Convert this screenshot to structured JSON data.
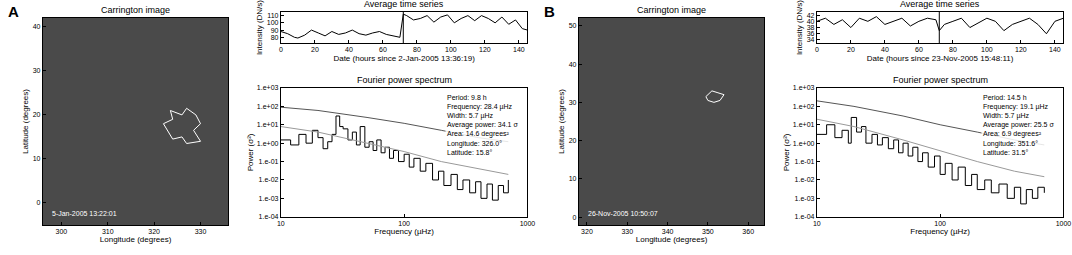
{
  "chart_data": [
    {
      "type": "image",
      "panel_label": "A",
      "title": "Carrington image",
      "x_label": "Longitude (degrees)",
      "y_label": "Latitude (degrees)",
      "xlim": [
        296,
        336
      ],
      "xticks": [
        300,
        310,
        320,
        330
      ],
      "ylim": [
        -5,
        42
      ],
      "yticks": [
        0,
        10,
        20,
        30,
        40
      ],
      "timestamp": "5-Jan-2005 13:22:01",
      "region_outline": {
        "lon": [
          322,
          324,
          323.5,
          326,
          327,
          329,
          330,
          328.5,
          330,
          327,
          326,
          324,
          322
        ],
        "lat": [
          18,
          19,
          21,
          20,
          21.5,
          20,
          18,
          16.5,
          14,
          13.5,
          15,
          14.5,
          18
        ]
      },
      "grid": false
    },
    {
      "type": "line",
      "title": "Average time series",
      "x_label": "Date (hours since 2-Jan-2005 13:36:19)",
      "y_label": "Intensity (DN/s)",
      "x": [
        0,
        4,
        8,
        10,
        14,
        18,
        22,
        26,
        30,
        34,
        38,
        42,
        46,
        50,
        54,
        58,
        62,
        66,
        70,
        72,
        74,
        78,
        82,
        86,
        90,
        94,
        98,
        102,
        106,
        110,
        114,
        118,
        122,
        126,
        130,
        134,
        138,
        142,
        145
      ],
      "values": [
        88,
        85,
        80,
        79,
        83,
        90,
        86,
        82,
        88,
        84,
        86,
        90,
        85,
        83,
        86,
        88,
        84,
        82,
        80,
        112,
        110,
        104,
        106,
        110,
        101,
        108,
        111,
        100,
        106,
        110,
        103,
        110,
        106,
        100,
        108,
        98,
        104,
        92,
        90
      ],
      "xlim": [
        0,
        145
      ],
      "xticks": [
        0,
        20,
        40,
        60,
        80,
        100,
        120,
        140
      ],
      "ylim": [
        72,
        115
      ],
      "yticks": [
        80,
        90,
        100,
        110
      ],
      "reference_x": 72,
      "color": "#000000",
      "grid": false
    },
    {
      "type": "line",
      "log": true,
      "title": "Fourier power spectrum",
      "x_label": "Frequency (µHz)",
      "y_label": "Power (σ²)",
      "xlim": [
        10,
        1000
      ],
      "xticks": [
        10,
        100,
        1000
      ],
      "ylim": [
        0.0001,
        1000
      ],
      "yticks": [
        {
          "value": 0.0001,
          "label": "1.e-04"
        },
        {
          "value": 0.001,
          "label": "1.e-03"
        },
        {
          "value": 0.01,
          "label": "1.e-02"
        },
        {
          "value": 0.1,
          "label": "1.e-01"
        },
        {
          "value": 1,
          "label": "1.e+00"
        },
        {
          "value": 10,
          "label": "1.e+01"
        },
        {
          "value": 100,
          "label": "1.e+02"
        },
        {
          "value": 1000,
          "label": "1.e+03"
        }
      ],
      "series": [
        {
          "color": "#000000",
          "line_style": "step",
          "x": [
            10,
            12,
            14,
            16,
            18,
            20,
            22,
            24,
            26,
            28,
            30,
            32,
            35,
            38,
            41,
            44,
            48,
            52,
            56,
            60,
            65,
            70,
            76,
            82,
            90,
            100,
            110,
            120,
            135,
            150,
            170,
            190,
            210,
            240,
            270,
            300,
            340,
            380,
            420,
            470,
            520,
            580,
            640,
            700
          ],
          "values": [
            1.5,
            0.8,
            3,
            1,
            5,
            2,
            0.5,
            1.2,
            3,
            30,
            8,
            6,
            1.5,
            4,
            0.8,
            8,
            0.6,
            1.2,
            0.4,
            1.5,
            0.3,
            0.6,
            0.15,
            0.4,
            0.1,
            0.25,
            0.05,
            0.15,
            0.03,
            0.08,
            0.01,
            0.03,
            0.005,
            0.02,
            0.003,
            0.01,
            0.002,
            0.008,
            0.001,
            0.006,
            0.0008,
            0.005,
            0.002,
            0.01
          ]
        },
        {
          "color": "#555555",
          "line_style": "solid",
          "x": [
            10,
            20,
            50,
            100,
            200,
            400,
            700
          ],
          "values": [
            90,
            60,
            25,
            12,
            5,
            2,
            1.2
          ]
        },
        {
          "color": "#999999",
          "line_style": "solid",
          "x": [
            10,
            20,
            50,
            100,
            200,
            400,
            700
          ],
          "values": [
            8,
            4,
            1,
            0.35,
            0.1,
            0.04,
            0.02
          ]
        }
      ],
      "annotation_lines": [
        "Period: 9.8 h",
        "Frequency: 28.4 µHz",
        "Width: 5.7 µHz",
        "Average power: 34.1 σ",
        "Area: 14.6 degrees²",
        "Longitude: 326.0°",
        "Latitude: 15.8°"
      ],
      "grid": false
    },
    {
      "type": "image",
      "panel_label": "B",
      "title": "Carrington image",
      "x_label": "Longitude (degrees)",
      "y_label": "Latitude (degrees)",
      "xlim": [
        318,
        364
      ],
      "xticks": [
        320,
        330,
        340,
        350,
        360
      ],
      "ylim": [
        -2,
        52
      ],
      "yticks": [
        0,
        10,
        20,
        30,
        40,
        50
      ],
      "timestamp": "26-Nov-2005 10:50:07",
      "region_outline": {
        "lon": [
          349.5,
          351,
          352.5,
          354,
          353,
          351.5,
          350,
          349.5
        ],
        "lat": [
          31.5,
          33,
          32.5,
          32,
          30.5,
          30,
          30.5,
          31.5
        ]
      },
      "grid": false
    },
    {
      "type": "line",
      "title": "Average time series",
      "x_label": "Date (hours since 23-Nov-2005 15:48:11)",
      "y_label": "Intensity (DN/s)",
      "x": [
        0,
        5,
        10,
        15,
        20,
        25,
        30,
        35,
        40,
        45,
        50,
        55,
        60,
        65,
        70,
        72,
        75,
        80,
        85,
        90,
        95,
        100,
        105,
        110,
        115,
        120,
        125,
        130,
        135,
        140,
        145
      ],
      "values": [
        40,
        41,
        39,
        40.5,
        38,
        41,
        40,
        41.5,
        39,
        40,
        41,
        38.5,
        40,
        41,
        40.5,
        37,
        39,
        40,
        41,
        38,
        39.5,
        41,
        40,
        37,
        39,
        40,
        41,
        39,
        36,
        40,
        41
      ],
      "xlim": [
        0,
        145
      ],
      "xticks": [
        0,
        20,
        40,
        60,
        80,
        100,
        120,
        140
      ],
      "ylim": [
        33,
        43
      ],
      "yticks": [
        34,
        36,
        38,
        40,
        42
      ],
      "reference_x": 72,
      "color": "#000000",
      "grid": false
    },
    {
      "type": "line",
      "log": true,
      "title": "Fourier power spectrum",
      "x_label": "Frequency (µHz)",
      "y_label": "Power (σ²)",
      "xlim": [
        10,
        1000
      ],
      "xticks": [
        10,
        100,
        1000
      ],
      "ylim": [
        0.0001,
        1000
      ],
      "yticks": [
        {
          "value": 0.0001,
          "label": "1.e-04"
        },
        {
          "value": 0.001,
          "label": "1.e-03"
        },
        {
          "value": 0.01,
          "label": "1.e-02"
        },
        {
          "value": 0.1,
          "label": "1.e-01"
        },
        {
          "value": 1,
          "label": "1.e+00"
        },
        {
          "value": 10,
          "label": "1.e+01"
        },
        {
          "value": 100,
          "label": "1.e+02"
        },
        {
          "value": 1000,
          "label": "1.e+03"
        }
      ],
      "series": [
        {
          "color": "#000000",
          "line_style": "step",
          "x": [
            10,
            12,
            14,
            16,
            18,
            19,
            21,
            23,
            25,
            28,
            31,
            34,
            38,
            42,
            46,
            50,
            55,
            60,
            66,
            72,
            80,
            90,
            100,
            110,
            125,
            140,
            160,
            180,
            200,
            230,
            260,
            300,
            350,
            400,
            450,
            500,
            560,
            620,
            700
          ],
          "values": [
            3,
            10,
            2,
            5,
            1,
            25,
            4,
            8,
            1,
            3,
            0.8,
            2,
            0.5,
            1.5,
            0.3,
            1,
            0.2,
            0.6,
            0.1,
            0.3,
            0.05,
            0.2,
            0.02,
            0.08,
            0.01,
            0.05,
            0.005,
            0.02,
            0.003,
            0.01,
            0.002,
            0.006,
            0.001,
            0.004,
            0.0005,
            0.003,
            0.001,
            0.004,
            0.002
          ]
        },
        {
          "color": "#555555",
          "line_style": "solid",
          "x": [
            10,
            20,
            50,
            100,
            200,
            400,
            700
          ],
          "values": [
            200,
            100,
            30,
            10,
            4,
            1.5,
            0.8
          ]
        },
        {
          "color": "#999999",
          "line_style": "solid",
          "x": [
            10,
            20,
            50,
            100,
            200,
            400,
            700
          ],
          "values": [
            20,
            8,
            1.5,
            0.4,
            0.1,
            0.03,
            0.015
          ]
        }
      ],
      "annotation_lines": [
        "Period: 14.5 h",
        "Frequency: 19.1 µHz",
        "Width: 5.7 µHz",
        "Average power: 25.5 σ",
        "Area: 6.9 degrees²",
        "Longitude: 351.6°",
        "Latitude: 31.5°"
      ],
      "grid": false
    }
  ]
}
